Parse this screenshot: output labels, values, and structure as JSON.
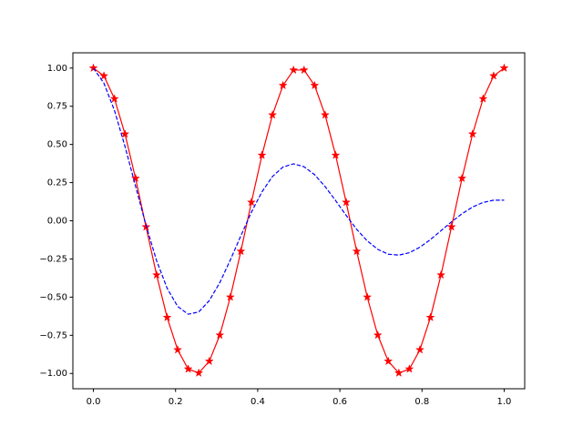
{
  "chart_data": {
    "type": "line",
    "x": [
      0,
      0.0256,
      0.0513,
      0.0769,
      0.1026,
      0.1282,
      0.1538,
      0.1795,
      0.2051,
      0.2308,
      0.2564,
      0.2821,
      0.3077,
      0.3333,
      0.359,
      0.3846,
      0.4103,
      0.4359,
      0.4615,
      0.4872,
      0.5128,
      0.5385,
      0.5641,
      0.5897,
      0.6154,
      0.641,
      0.6667,
      0.6923,
      0.7179,
      0.7436,
      0.7692,
      0.7949,
      0.8205,
      0.8462,
      0.8718,
      0.8974,
      0.9231,
      0.9487,
      0.9744,
      1
    ],
    "series": [
      {
        "color": "#ff0000",
        "linestyle": "solid",
        "marker": "star",
        "values": [
          1,
          0.949,
          0.799,
          0.568,
          0.278,
          -0.04,
          -0.355,
          -0.633,
          -0.845,
          -0.971,
          -0.997,
          -0.92,
          -0.749,
          -0.5,
          -0.2,
          0.121,
          0.429,
          0.693,
          0.886,
          0.987,
          0.987,
          0.886,
          0.693,
          0.429,
          0.121,
          -0.2,
          -0.5,
          -0.749,
          -0.92,
          -0.997,
          -0.971,
          -0.845,
          -0.633,
          -0.355,
          -0.04,
          0.278,
          0.568,
          0.799,
          0.949,
          1
        ]
      },
      {
        "color": "#0000ff",
        "linestyle": "dashed",
        "values": [
          1,
          0.901,
          0.722,
          0.487,
          0.227,
          -0.031,
          -0.261,
          -0.442,
          -0.561,
          -0.612,
          -0.597,
          -0.523,
          -0.405,
          -0.257,
          -0.098,
          0.056,
          0.189,
          0.29,
          0.352,
          0.373,
          0.354,
          0.302,
          0.224,
          0.132,
          0.035,
          -0.056,
          -0.132,
          -0.187,
          -0.219,
          -0.225,
          -0.209,
          -0.173,
          -0.123,
          -0.065,
          -0.007,
          0.046,
          0.09,
          0.12,
          0.135,
          0.135
        ]
      }
    ],
    "xlim": [
      -0.05,
      1.05
    ],
    "ylim": [
      -1.1,
      1.1
    ],
    "xticks": [
      {
        "value": 0,
        "label": "0.0"
      },
      {
        "value": 0.2,
        "label": "0.2"
      },
      {
        "value": 0.4,
        "label": "0.4"
      },
      {
        "value": 0.6,
        "label": "0.6"
      },
      {
        "value": 0.8,
        "label": "0.8"
      },
      {
        "value": 1,
        "label": "1.0"
      }
    ],
    "yticks": [
      {
        "value": -1,
        "label": "−1.00"
      },
      {
        "value": -0.75,
        "label": "−0.75"
      },
      {
        "value": -0.5,
        "label": "−0.50"
      },
      {
        "value": -0.25,
        "label": "−0.25"
      },
      {
        "value": 0,
        "label": "0.00"
      },
      {
        "value": 0.25,
        "label": "0.25"
      },
      {
        "value": 0.5,
        "label": "0.50"
      },
      {
        "value": 0.75,
        "label": "0.75"
      },
      {
        "value": 1,
        "label": "1.00"
      }
    ]
  }
}
